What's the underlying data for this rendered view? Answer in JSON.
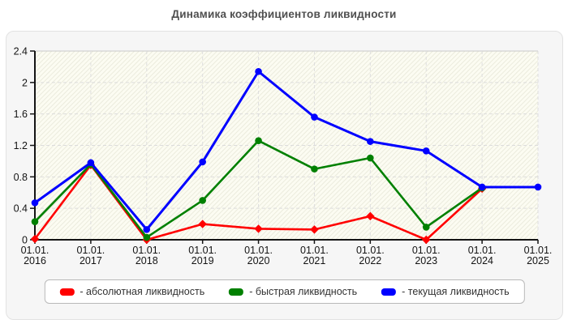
{
  "chart_data": {
    "type": "line",
    "title": "Динамика коэффициентов ликвидности",
    "x_labels": [
      {
        "l1": "01.01.",
        "l2": "2016"
      },
      {
        "l1": "01.01.",
        "l2": "2017"
      },
      {
        "l1": "01.01.",
        "l2": "2018"
      },
      {
        "l1": "01.01.",
        "l2": "2019"
      },
      {
        "l1": "01.01.",
        "l2": "2020"
      },
      {
        "l1": "01.01.",
        "l2": "2021"
      },
      {
        "l1": "01.01.",
        "l2": "2022"
      },
      {
        "l1": "01.01.",
        "l2": "2023"
      },
      {
        "l1": "01.01.",
        "l2": "2024"
      },
      {
        "l1": "01.01.",
        "l2": "2025"
      }
    ],
    "y_tick_labels": [
      "0",
      "0.4",
      "0.8",
      "1.2",
      "1.6",
      "2",
      "2.4"
    ],
    "ylim": [
      0,
      2.4
    ],
    "grid": true,
    "legend_position": "bottom",
    "series": [
      {
        "key": "absolute-liquidity",
        "name": "абсолютная ликвидность",
        "legend_label": "- абсолютная ликвидность",
        "color": "#ff0000",
        "marker": "diamond",
        "values": [
          0.01,
          0.95,
          0.0,
          0.2,
          0.14,
          0.13,
          0.3,
          0.0,
          0.65,
          null
        ]
      },
      {
        "key": "quick-liquidity",
        "name": "быстрая ликвидность",
        "legend_label": "- быстрая ликвидность",
        "color": "#008000",
        "marker": "circle",
        "values": [
          0.23,
          0.96,
          0.03,
          0.5,
          1.26,
          0.9,
          1.04,
          0.16,
          0.66,
          null
        ]
      },
      {
        "key": "current-liquidity",
        "name": "текущая ликвидность",
        "legend_label": "- текущая ликвидность",
        "color": "#0000ff",
        "marker": "circle",
        "values": [
          0.47,
          0.98,
          0.13,
          0.99,
          2.14,
          1.56,
          1.25,
          1.13,
          0.67,
          0.67
        ]
      }
    ]
  }
}
